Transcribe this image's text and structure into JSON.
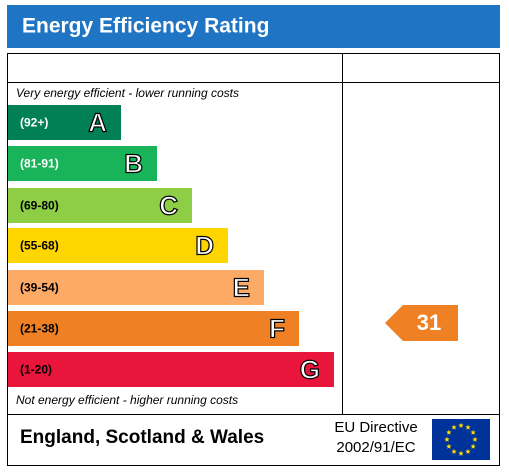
{
  "header": {
    "title": "Energy Efficiency Rating"
  },
  "top_note": "Very energy efficient - lower running costs",
  "bottom_note": "Not energy efficient - higher running costs",
  "bands": [
    {
      "range": "(92+)",
      "letter": "A"
    },
    {
      "range": "(81-91)",
      "letter": "B"
    },
    {
      "range": "(69-80)",
      "letter": "C"
    },
    {
      "range": "(55-68)",
      "letter": "D"
    },
    {
      "range": "(39-54)",
      "letter": "E"
    },
    {
      "range": "(21-38)",
      "letter": "F"
    },
    {
      "range": "(1-20)",
      "letter": "G"
    }
  ],
  "current_rating": 31,
  "footer": {
    "region": "England, Scotland & Wales",
    "directive_line1": "EU Directive",
    "directive_line2": "2002/91/EC"
  }
}
